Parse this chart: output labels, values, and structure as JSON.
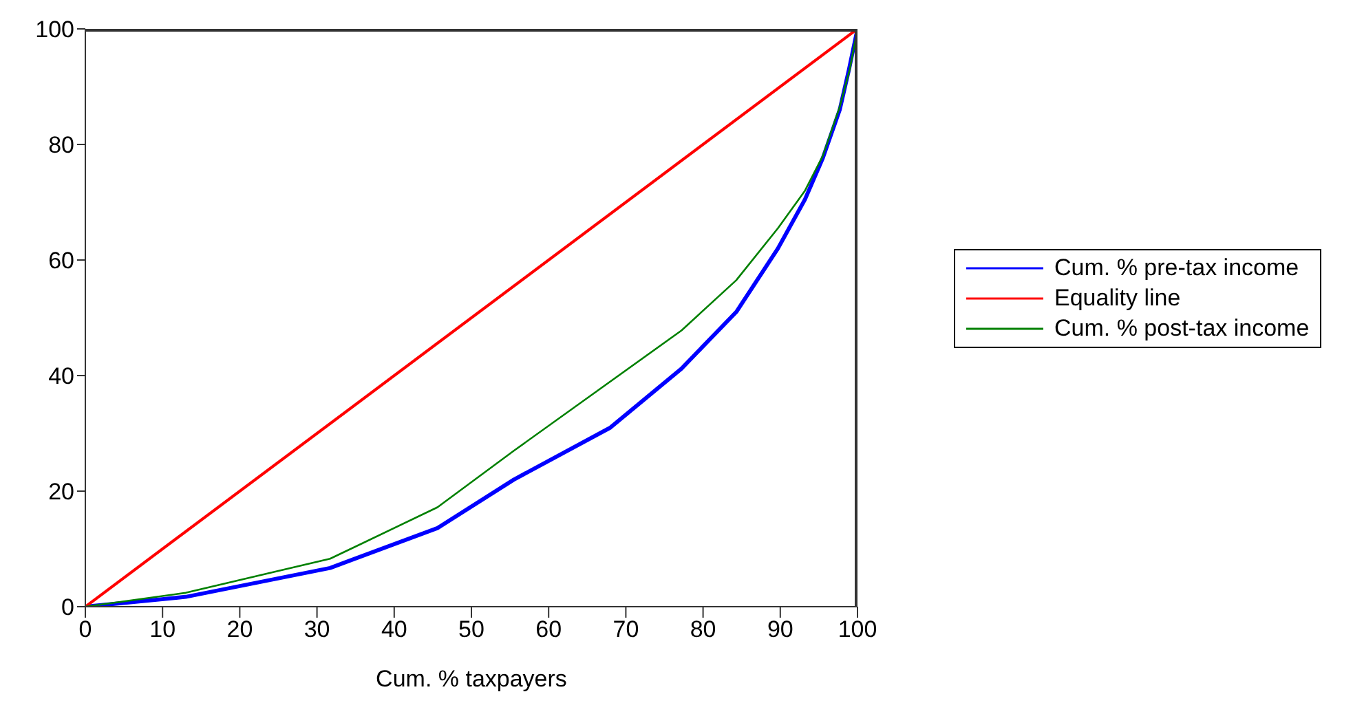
{
  "chart_data": {
    "type": "line",
    "xlabel": "Cum. % taxpayers",
    "xlim": [
      0,
      100
    ],
    "ylim": [
      0,
      100
    ],
    "xticks": [
      0,
      10,
      20,
      30,
      40,
      50,
      60,
      70,
      80,
      90,
      100
    ],
    "yticks": [
      0,
      20,
      40,
      60,
      80,
      100
    ],
    "grid": false,
    "legend": "right",
    "marker": "none",
    "line_style": "solid",
    "series": [
      {
        "name": "Cum. % pre-tax income",
        "color": "#0000ff",
        "x": [
          0,
          13,
          31.7,
          45.6,
          55.5,
          68,
          77.2,
          84.3,
          89.7,
          93.2,
          95.5,
          97.7,
          98.9,
          100
        ],
        "values": [
          0,
          1.7,
          6.7,
          13.6,
          22,
          31,
          41.2,
          51,
          62,
          70.5,
          77.6,
          86,
          93,
          100
        ]
      },
      {
        "name": "Equality line",
        "color": "#ff0000",
        "x": [
          0,
          100
        ],
        "values": [
          0,
          100
        ]
      },
      {
        "name": "Cum. % post-tax income",
        "color": "#008000",
        "x": [
          0,
          13,
          31.7,
          45.6,
          55.5,
          77.2,
          84.3,
          89.7,
          93.2,
          95.5,
          97.7,
          99,
          100
        ],
        "values": [
          0,
          2.4,
          8.3,
          17.2,
          27,
          47.8,
          56.5,
          65.5,
          72,
          78,
          86.5,
          93,
          100
        ]
      }
    ]
  }
}
